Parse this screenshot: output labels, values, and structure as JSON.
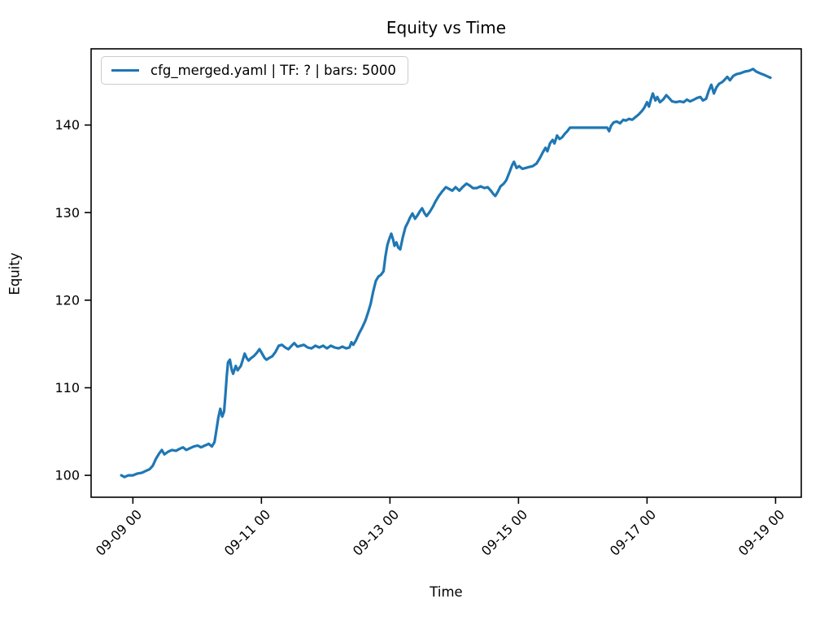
{
  "chart_data": {
    "type": "line",
    "title": "Equity vs Time",
    "xlabel": "Time",
    "ylabel": "Equity",
    "legend_position": "upper-left",
    "grid": false,
    "line_color": "#1f77b4",
    "axis_color": "#000000",
    "x_unit": "days since 09-09 00:00",
    "xlim": [
      -0.65,
      10.4
    ],
    "ylim": [
      97.5,
      148.7
    ],
    "x_ticks": [
      0,
      2,
      4,
      6,
      8,
      10
    ],
    "x_tick_labels": [
      "09-09 00",
      "09-11 00",
      "09-13 00",
      "09-15 00",
      "09-17 00",
      "09-19 00"
    ],
    "y_ticks": [
      100,
      110,
      120,
      130,
      140
    ],
    "y_tick_labels": [
      "100",
      "110",
      "120",
      "130",
      "140"
    ],
    "series": [
      {
        "name": "cfg_merged.yaml | TF: ? | bars: 5000",
        "x": [
          -0.18,
          -0.13,
          -0.07,
          0,
          0.07,
          0.14,
          0.2,
          0.26,
          0.31,
          0.36,
          0.41,
          0.45,
          0.49,
          0.55,
          0.61,
          0.67,
          0.72,
          0.78,
          0.83,
          0.89,
          0.95,
          1.01,
          1.06,
          1.12,
          1.18,
          1.23,
          1.27,
          1.3,
          1.33,
          1.36,
          1.39,
          1.42,
          1.44,
          1.46,
          1.48,
          1.51,
          1.54,
          1.56,
          1.6,
          1.63,
          1.68,
          1.71,
          1.74,
          1.77,
          1.8,
          1.84,
          1.88,
          1.93,
          1.97,
          2.01,
          2.05,
          2.08,
          2.12,
          2.17,
          2.22,
          2.27,
          2.32,
          2.37,
          2.42,
          2.47,
          2.51,
          2.56,
          2.61,
          2.66,
          2.72,
          2.78,
          2.84,
          2.9,
          2.96,
          3.02,
          3.08,
          3.14,
          3.2,
          3.26,
          3.32,
          3.37,
          3.4,
          3.43,
          3.47,
          3.52,
          3.57,
          3.62,
          3.66,
          3.7,
          3.74,
          3.78,
          3.82,
          3.86,
          3.9,
          3.93,
          3.96,
          3.99,
          4.02,
          4.05,
          4.07,
          4.1,
          4.13,
          4.16,
          4.2,
          4.24,
          4.28,
          4.31,
          4.35,
          4.39,
          4.43,
          4.47,
          4.5,
          4.54,
          4.57,
          4.62,
          4.67,
          4.71,
          4.76,
          4.81,
          4.87,
          4.92,
          4.97,
          5.02,
          5.08,
          5.13,
          5.19,
          5.24,
          5.29,
          5.35,
          5.41,
          5.47,
          5.52,
          5.57,
          5.61,
          5.64,
          5.68,
          5.72,
          5.77,
          5.81,
          5.86,
          5.9,
          5.93,
          5.97,
          6.01,
          6.06,
          6.11,
          6.16,
          6.22,
          6.28,
          6.33,
          6.38,
          6.42,
          6.45,
          6.49,
          6.53,
          6.56,
          6.6,
          6.64,
          6.68,
          6.72,
          6.76,
          6.8,
          7,
          7.2,
          7.38,
          7.41,
          7.44,
          7.48,
          7.53,
          7.58,
          7.63,
          7.67,
          7.72,
          7.77,
          7.82,
          7.87,
          7.92,
          7.96,
          8,
          8.03,
          8.06,
          8.09,
          8.13,
          8.16,
          8.2,
          8.25,
          8.3,
          8.34,
          8.39,
          8.45,
          8.51,
          8.57,
          8.62,
          8.67,
          8.73,
          8.78,
          8.83,
          8.87,
          8.92,
          8.96,
          9,
          9.04,
          9.08,
          9.12,
          9.17,
          9.21,
          9.25,
          9.29,
          9.34,
          9.39,
          9.45,
          9.52,
          9.59,
          9.65,
          9.7,
          9.76,
          9.83,
          9.89,
          9.92
        ],
        "y": [
          100,
          99.8,
          100,
          100,
          100.2,
          100.3,
          100.5,
          100.7,
          101.1,
          101.9,
          102.5,
          102.9,
          102.4,
          102.7,
          102.9,
          102.8,
          103,
          103.2,
          102.9,
          103.1,
          103.3,
          103.4,
          103.2,
          103.4,
          103.6,
          103.3,
          103.8,
          105.2,
          106.6,
          107.6,
          106.7,
          107.3,
          109.2,
          111.3,
          112.9,
          113.2,
          112,
          111.6,
          112.5,
          112,
          112.5,
          113.2,
          113.9,
          113.4,
          113.1,
          113.4,
          113.6,
          114,
          114.4,
          113.9,
          113.4,
          113.2,
          113.4,
          113.6,
          114.1,
          114.8,
          114.9,
          114.6,
          114.4,
          114.8,
          115.1,
          114.7,
          114.8,
          114.9,
          114.6,
          114.5,
          114.8,
          114.6,
          114.8,
          114.5,
          114.8,
          114.6,
          114.5,
          114.7,
          114.5,
          114.6,
          115.2,
          114.9,
          115.4,
          116.2,
          116.9,
          117.7,
          118.6,
          119.6,
          121,
          122.2,
          122.7,
          122.9,
          123.3,
          125,
          126.3,
          127,
          127.6,
          126.9,
          126.2,
          126.6,
          126,
          125.8,
          127.2,
          128.3,
          128.9,
          129.4,
          129.9,
          129.3,
          129.7,
          130.2,
          130.5,
          129.9,
          129.6,
          130.1,
          130.7,
          131.3,
          131.9,
          132.4,
          132.9,
          132.7,
          132.5,
          132.9,
          132.5,
          132.9,
          133.3,
          133.1,
          132.8,
          132.8,
          133,
          132.8,
          132.9,
          132.5,
          132.1,
          131.9,
          132.4,
          133,
          133.3,
          133.7,
          134.6,
          135.4,
          135.8,
          135.1,
          135.3,
          135,
          135.1,
          135.2,
          135.3,
          135.6,
          136.2,
          136.9,
          137.4,
          137,
          137.9,
          138.3,
          137.9,
          138.8,
          138.4,
          138.6,
          139,
          139.3,
          139.7,
          139.7,
          139.7,
          139.7,
          139.3,
          139.9,
          140.3,
          140.4,
          140.2,
          140.6,
          140.5,
          140.7,
          140.6,
          140.9,
          141.2,
          141.6,
          142,
          142.6,
          142.1,
          142.9,
          143.6,
          142.8,
          143.2,
          142.6,
          142.9,
          143.4,
          143.1,
          142.7,
          142.6,
          142.7,
          142.6,
          142.9,
          142.7,
          142.9,
          143.1,
          143.2,
          142.8,
          143,
          143.9,
          144.6,
          143.6,
          144.3,
          144.7,
          144.9,
          145.2,
          145.5,
          145.1,
          145.6,
          145.8,
          145.9,
          146.1,
          146.2,
          146.4,
          146.1,
          145.9,
          145.7,
          145.5,
          145.4
        ]
      }
    ]
  }
}
